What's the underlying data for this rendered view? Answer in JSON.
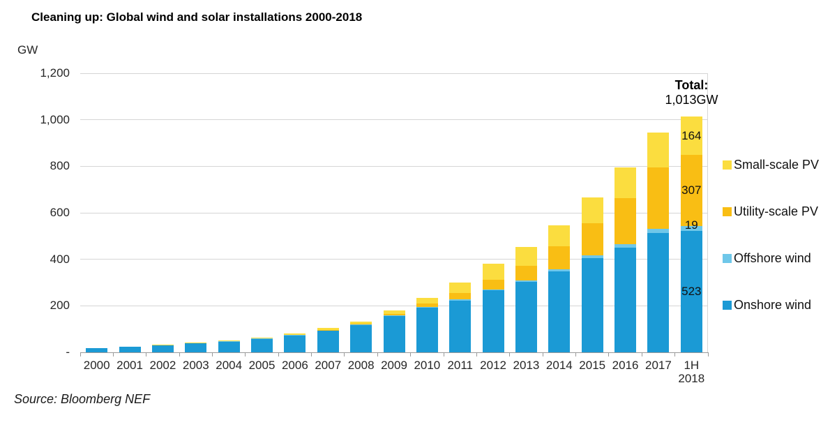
{
  "title": "Cleaning up: Global wind and solar installations 2000-2018",
  "y_axis": {
    "unit_label": "GW",
    "ticks": [
      "1,200",
      "1,000",
      "800",
      "600",
      "400",
      "200",
      "-"
    ]
  },
  "annotation": {
    "total_label": "Total:",
    "total_value": "1,013GW"
  },
  "legend": [
    {
      "label": "Small-scale PV",
      "color": "#FBDD3F"
    },
    {
      "label": "Utility-scale PV",
      "color": "#F9BE14"
    },
    {
      "label": "Offshore wind",
      "color": "#6FC7E9"
    },
    {
      "label": "Onshore wind",
      "color": "#1B9AD5"
    }
  ],
  "source": "Source: Bloomberg NEF",
  "chart_data": {
    "type": "bar",
    "stacked": true,
    "title": "Cleaning up: Global wind and solar installations 2000-2018",
    "ylabel": "GW",
    "ylim": [
      0,
      1200
    ],
    "grid_interval": 200,
    "gridlines": "horizontal",
    "legend_position": "right",
    "categories": [
      "2000",
      "2001",
      "2002",
      "2003",
      "2004",
      "2005",
      "2006",
      "2007",
      "2008",
      "2009",
      "2010",
      "2011",
      "2012",
      "2013",
      "2014",
      "2015",
      "2016",
      "2017",
      "1H\n2018"
    ],
    "series": [
      {
        "name": "Onshore wind",
        "color": "#1B9AD5",
        "values": [
          17,
          23,
          30,
          38,
          46,
          58,
          73,
          93,
          118,
          156,
          193,
          223,
          266,
          303,
          348,
          404,
          450,
          514,
          523
        ]
      },
      {
        "name": "Offshore wind",
        "color": "#6FC7E9",
        "values": [
          0,
          0,
          0,
          1,
          1,
          1,
          1,
          1,
          1,
          2,
          3,
          4,
          5,
          7,
          8,
          12,
          14,
          18,
          19
        ]
      },
      {
        "name": "Utility-scale PV",
        "color": "#F9BE14",
        "values": [
          0,
          0,
          0,
          0,
          1,
          1,
          2,
          3,
          4,
          7,
          13,
          28,
          42,
          62,
          100,
          140,
          200,
          263,
          307
        ]
      },
      {
        "name": "Small-scale PV",
        "color": "#FBDD3F",
        "values": [
          1,
          1,
          2,
          2,
          3,
          4,
          5,
          7,
          10,
          15,
          24,
          45,
          67,
          81,
          91,
          111,
          131,
          150,
          164
        ]
      }
    ],
    "last_bar_value_labels": {
      "Onshore wind": 523,
      "Offshore wind": 19,
      "Utility-scale PV": 307,
      "Small-scale PV": 164
    },
    "last_bar_total": "1,013GW"
  }
}
